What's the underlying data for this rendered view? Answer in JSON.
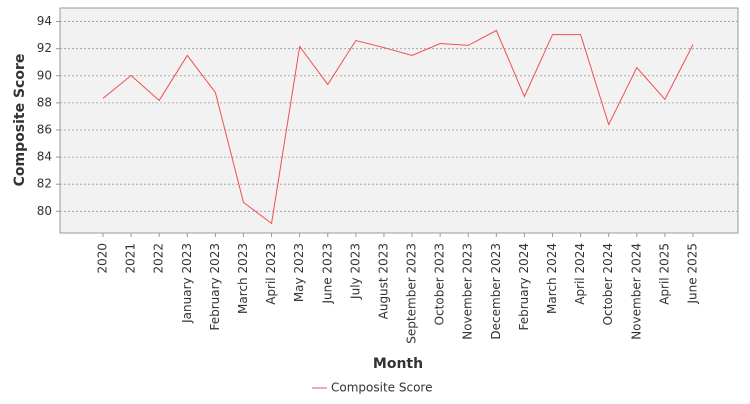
{
  "chart_data": {
    "type": "line",
    "y_label": "Composite Score",
    "x_label": "Month",
    "categories": [
      "2020",
      "2021",
      "2022",
      "January 2023",
      "February 2023",
      "March 2023",
      "April 2023",
      "May 2023",
      "June 2023",
      "July 2023",
      "August 2023",
      "September 2023",
      "October 2023",
      "November 2023",
      "December 2023",
      "February 2024",
      "March 2024",
      "April 2024",
      "October 2024",
      "November 2024",
      "April 2025",
      "June 2025"
    ],
    "series": [
      {
        "name": "Composite Score",
        "color": "#f05050",
        "values": [
          88.33,
          90.02,
          88.18,
          91.5,
          88.77,
          80.66,
          79.11,
          92.16,
          89.36,
          92.6,
          92.08,
          91.5,
          92.38,
          92.24,
          93.34,
          88.47,
          93.04,
          93.04,
          86.4,
          90.6,
          88.26,
          92.3
        ]
      }
    ],
    "ylim": [
      78.4,
      95.0
    ],
    "yticks": [
      80,
      82,
      84,
      86,
      88,
      90,
      92,
      94
    ],
    "grid": true,
    "legend": "bottom"
  }
}
